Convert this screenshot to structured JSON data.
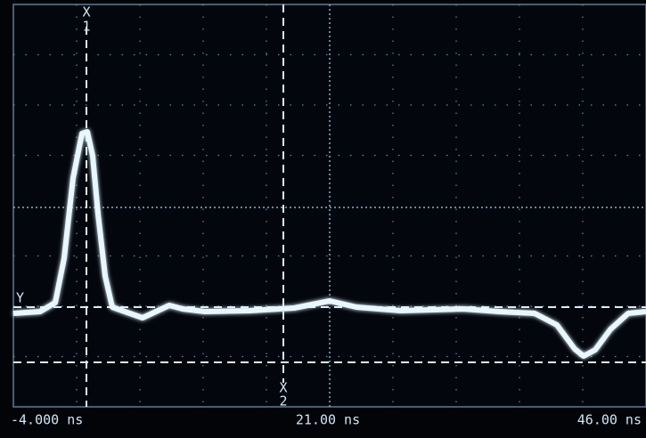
{
  "time_labels": [
    "-4.000 ns",
    "21.00 ns",
    "46.00 ns"
  ],
  "cursors": [
    {
      "letter": "X",
      "number": "1"
    },
    {
      "letter": "X",
      "number": "2"
    }
  ],
  "y_cursor": "Y"
}
